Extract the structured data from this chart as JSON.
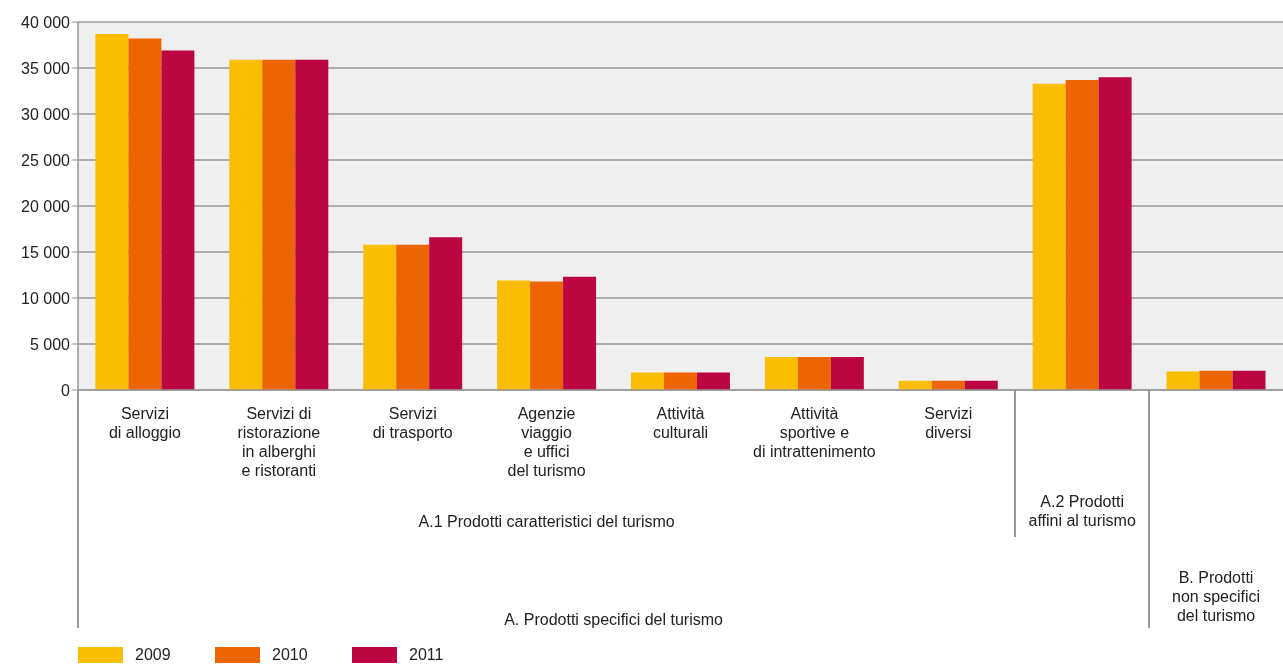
{
  "chart_data": {
    "type": "bar",
    "categories": [
      "Servizi\ndi alloggio",
      "Servizi di\nristorazione\nin alberghi\ne ristoranti",
      "Servizi\ndi trasporto",
      "Agenzie\nviaggio\ne uffici\ndel turismo",
      "Attività\nculturali",
      "Attività\nsportive e\ndi intrattenimento",
      "Servizi\ndiversi",
      null,
      null
    ],
    "series": [
      {
        "name": "2009",
        "color": "#fabd00",
        "values": [
          38700,
          35900,
          15800,
          11900,
          1900,
          3600,
          1000,
          33300,
          2000
        ]
      },
      {
        "name": "2010",
        "color": "#ec6500",
        "values": [
          38200,
          35900,
          15800,
          11800,
          1900,
          3600,
          1000,
          33700,
          2100
        ]
      },
      {
        "name": "2011",
        "color": "#bc0641",
        "values": [
          36900,
          35900,
          16600,
          12300,
          1900,
          3600,
          1000,
          34000,
          2100
        ]
      }
    ],
    "ylim": [
      0,
      40000
    ],
    "yticks": [
      {
        "value": 0,
        "label": "0"
      },
      {
        "value": 5000,
        "label": "5 000"
      },
      {
        "value": 10000,
        "label": "10 000"
      },
      {
        "value": 15000,
        "label": "15 000"
      },
      {
        "value": 20000,
        "label": "20 000"
      },
      {
        "value": 25000,
        "label": "25 000"
      },
      {
        "value": 30000,
        "label": "30 000"
      },
      {
        "value": 35000,
        "label": "35 000"
      },
      {
        "value": 40000,
        "label": "40 000"
      }
    ],
    "grid": "y",
    "legend": "bottom",
    "annotations": [
      "A.1 Prodotti caratteristici del turismo",
      "A.2 Prodotti\naffini al turismo",
      "B. Prodotti\nnon specifici\ndel turismo",
      "A. Prodotti specifici del turismo"
    ]
  }
}
